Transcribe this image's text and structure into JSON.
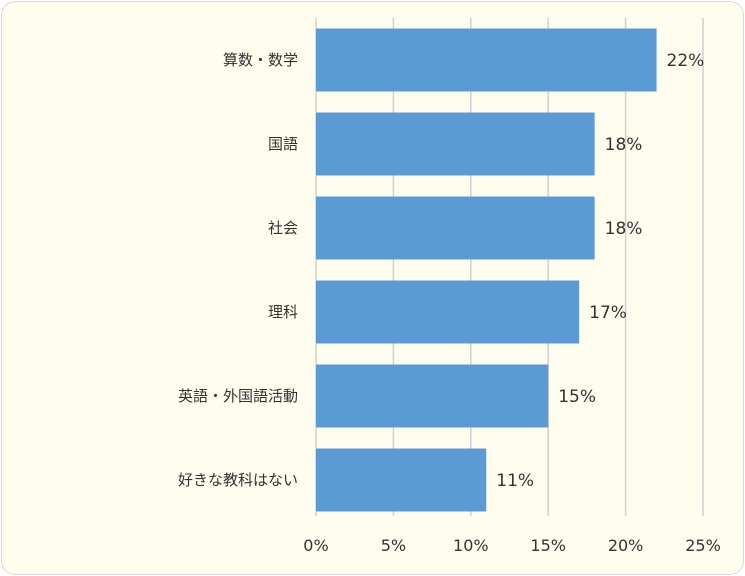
{
  "chart_data": {
    "type": "bar",
    "orientation": "horizontal",
    "categories": [
      "算数・数学",
      "国語",
      "社会",
      "理科",
      "英語・外国語活動",
      "好きな教科はない"
    ],
    "values": [
      22,
      18,
      18,
      17,
      15,
      11
    ],
    "data_labels": [
      "22%",
      "18%",
      "18%",
      "17%",
      "15%",
      "11%"
    ],
    "xlim": [
      0,
      25
    ],
    "xticks": [
      0,
      5,
      10,
      15,
      20,
      25
    ],
    "xtick_labels": [
      "0%",
      "5%",
      "10%",
      "15%",
      "20%",
      "25%"
    ],
    "grid": "vertical",
    "bar_color": "#5b9bd5",
    "gridline_color": "#d0d0d0",
    "background_color": "#fffdee"
  }
}
